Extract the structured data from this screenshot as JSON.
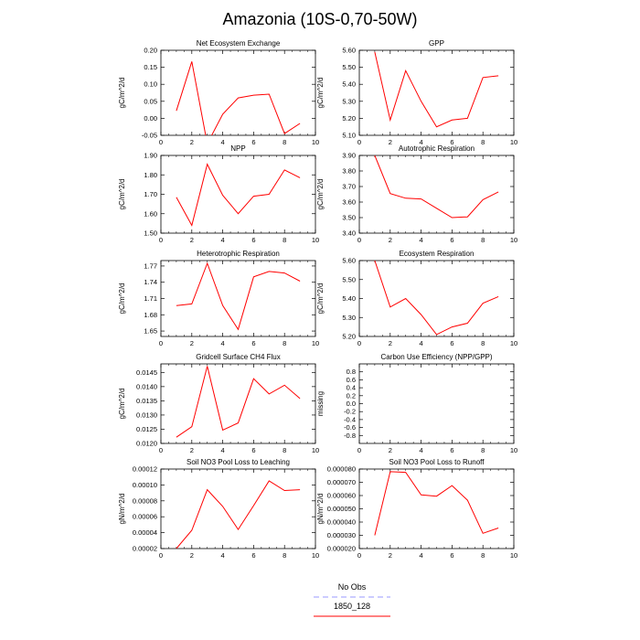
{
  "title": "Amazonia (10S-0,70-50W)",
  "legend": [
    {
      "label": "No Obs",
      "color": "#9999ff",
      "dash": true
    },
    {
      "label": "1850_128",
      "color": "#ff0000",
      "dash": false
    }
  ],
  "series_color": "#ff0000",
  "chart_data": [
    {
      "type": "line",
      "title": "Net Ecosystem Exchange",
      "ylabel": "gC/m^2/d",
      "xlim": [
        0,
        10
      ],
      "xticks": [
        0,
        2,
        4,
        6,
        8,
        10
      ],
      "ylim": [
        -0.05,
        0.2
      ],
      "yticks": [
        "-0.05",
        "0.00",
        "0.05",
        "0.10",
        "0.15",
        "0.20"
      ],
      "x": [
        1,
        2,
        3,
        4,
        5,
        6,
        7,
        8,
        9
      ],
      "y": [
        0.022,
        0.167,
        -0.075,
        0.012,
        0.06,
        0.068,
        0.071,
        -0.045,
        -0.015
      ]
    },
    {
      "type": "line",
      "title": "GPP",
      "ylabel": "gC/m^2/d",
      "xlim": [
        0,
        10
      ],
      "xticks": [
        0,
        2,
        4,
        6,
        8,
        10
      ],
      "ylim": [
        5.1,
        5.6
      ],
      "yticks": [
        "5.10",
        "5.20",
        "5.30",
        "5.40",
        "5.50",
        "5.60"
      ],
      "x": [
        1,
        2,
        3,
        4,
        5,
        6,
        7,
        8,
        9
      ],
      "y": [
        5.59,
        5.19,
        5.48,
        5.3,
        5.15,
        5.19,
        5.2,
        5.44,
        5.45
      ]
    },
    {
      "type": "line",
      "title": "NPP",
      "ylabel": "gC/m^2/d",
      "xlim": [
        0,
        10
      ],
      "xticks": [
        0,
        2,
        4,
        6,
        8,
        10
      ],
      "ylim": [
        1.5,
        1.9
      ],
      "yticks": [
        "1.50",
        "1.60",
        "1.70",
        "1.80",
        "1.90"
      ],
      "x": [
        1,
        2,
        3,
        4,
        5,
        6,
        7,
        8,
        9
      ],
      "y": [
        1.685,
        1.54,
        1.855,
        1.695,
        1.6,
        1.69,
        1.7,
        1.825,
        1.785
      ]
    },
    {
      "type": "line",
      "title": "Autotrophic Respiration",
      "ylabel": "gC/m^2/d",
      "xlim": [
        0,
        10
      ],
      "xticks": [
        0,
        2,
        4,
        6,
        8,
        10
      ],
      "ylim": [
        3.4,
        3.9
      ],
      "yticks": [
        "3.40",
        "3.50",
        "3.60",
        "3.70",
        "3.80",
        "3.90"
      ],
      "x": [
        1,
        2,
        3,
        4,
        5,
        6,
        7,
        8,
        9
      ],
      "y": [
        3.9,
        3.655,
        3.625,
        3.62,
        3.56,
        3.5,
        3.505,
        3.615,
        3.665
      ]
    },
    {
      "type": "line",
      "title": "Heterotrophic Respiration",
      "ylabel": "gC/m^2/d",
      "xlim": [
        0,
        10
      ],
      "xticks": [
        0,
        2,
        4,
        6,
        8,
        10
      ],
      "ylim": [
        1.64,
        1.78
      ],
      "ytick_values": [
        1.65,
        1.68,
        1.71,
        1.74,
        1.77
      ],
      "yticks": [
        "1.65",
        "1.68",
        "1.71",
        "1.74",
        "1.77"
      ],
      "x": [
        1,
        2,
        3,
        4,
        5,
        6,
        7,
        8,
        9
      ],
      "y": [
        1.697,
        1.7,
        1.775,
        1.697,
        1.653,
        1.75,
        1.76,
        1.757,
        1.742
      ]
    },
    {
      "type": "line",
      "title": "Ecosystem Respiration",
      "ylabel": "gC/m^2/d",
      "xlim": [
        0,
        10
      ],
      "xticks": [
        0,
        2,
        4,
        6,
        8,
        10
      ],
      "ylim": [
        5.2,
        5.6
      ],
      "yticks": [
        "5.20",
        "5.30",
        "5.40",
        "5.50",
        "5.60"
      ],
      "x": [
        1,
        2,
        3,
        4,
        5,
        6,
        7,
        8,
        9
      ],
      "y": [
        5.6,
        5.355,
        5.4,
        5.315,
        5.21,
        5.25,
        5.27,
        5.375,
        5.41
      ]
    },
    {
      "type": "line",
      "title": "Gridcell Surface CH4 Flux",
      "ylabel": "gC/m^2/d",
      "xlim": [
        0,
        10
      ],
      "xticks": [
        0,
        2,
        4,
        6,
        8,
        10
      ],
      "ylim": [
        0.012,
        0.0148
      ],
      "ytick_values": [
        0.012,
        0.0125,
        0.013,
        0.0135,
        0.014,
        0.0145
      ],
      "yticks": [
        "0.0120",
        "0.0125",
        "0.0130",
        "0.0135",
        "0.0140",
        "0.0145"
      ],
      "x": [
        1,
        2,
        3,
        4,
        5,
        6,
        7,
        8,
        9
      ],
      "y": [
        0.01222,
        0.01259,
        0.01472,
        0.01247,
        0.01272,
        0.01428,
        0.01374,
        0.01405,
        0.01358
      ]
    },
    {
      "type": "line",
      "title": "Carbon Use Efficiency (NPP/GPP)",
      "ylabel": "missing",
      "xlim": [
        0,
        10
      ],
      "xticks": [
        0,
        2,
        4,
        6,
        8,
        10
      ],
      "ylim": [
        -1,
        1
      ],
      "ytick_values": [
        -0.8,
        -0.6,
        -0.4,
        -0.2,
        0,
        0.2,
        0.4,
        0.6,
        0.8
      ],
      "yticks": [
        "-0.8",
        "-0.6",
        "-0.4",
        "-0.2",
        "0.0",
        "0.2",
        "0.4",
        "0.6",
        "0.8"
      ],
      "x": [],
      "y": []
    },
    {
      "type": "line",
      "title": "Soil NO3 Pool Loss to Leaching",
      "ylabel": "gN/m^2/d",
      "xlim": [
        0,
        10
      ],
      "xticks": [
        0,
        2,
        4,
        6,
        8,
        10
      ],
      "ylim": [
        2e-05,
        0.00012
      ],
      "ytick_values": [
        2e-05,
        4e-05,
        6e-05,
        8e-05,
        0.0001,
        0.00012
      ],
      "yticks": [
        "0.00002",
        "0.00004",
        "0.00006",
        "0.00008",
        "0.00010",
        "0.00012"
      ],
      "x": [
        1,
        2,
        3,
        4,
        5,
        6,
        7,
        8,
        9
      ],
      "y": [
        2e-05,
        4.3e-05,
        9.4e-05,
        7.3e-05,
        4.4e-05,
        7.4e-05,
        0.000105,
        9.3e-05,
        9.4e-05
      ]
    },
    {
      "type": "line",
      "title": "Soil NO3 Pool Loss to Runoff",
      "ylabel": "gN/m^2/d",
      "xlim": [
        0,
        10
      ],
      "xticks": [
        0,
        2,
        4,
        6,
        8,
        10
      ],
      "ylim": [
        2e-05,
        8e-05
      ],
      "ytick_values": [
        2e-05,
        3e-05,
        4e-05,
        5e-05,
        6e-05,
        7e-05,
        8e-05
      ],
      "yticks": [
        "0.000020",
        "0.000030",
        "0.000040",
        "0.000050",
        "0.000060",
        "0.000070",
        "0.000080"
      ],
      "x": [
        1,
        2,
        3,
        4,
        5,
        6,
        7,
        8,
        9
      ],
      "y": [
        3e-05,
        7.8e-05,
        7.75e-05,
        6.05e-05,
        5.95e-05,
        6.75e-05,
        5.65e-05,
        3.15e-05,
        3.55e-05
      ]
    }
  ]
}
